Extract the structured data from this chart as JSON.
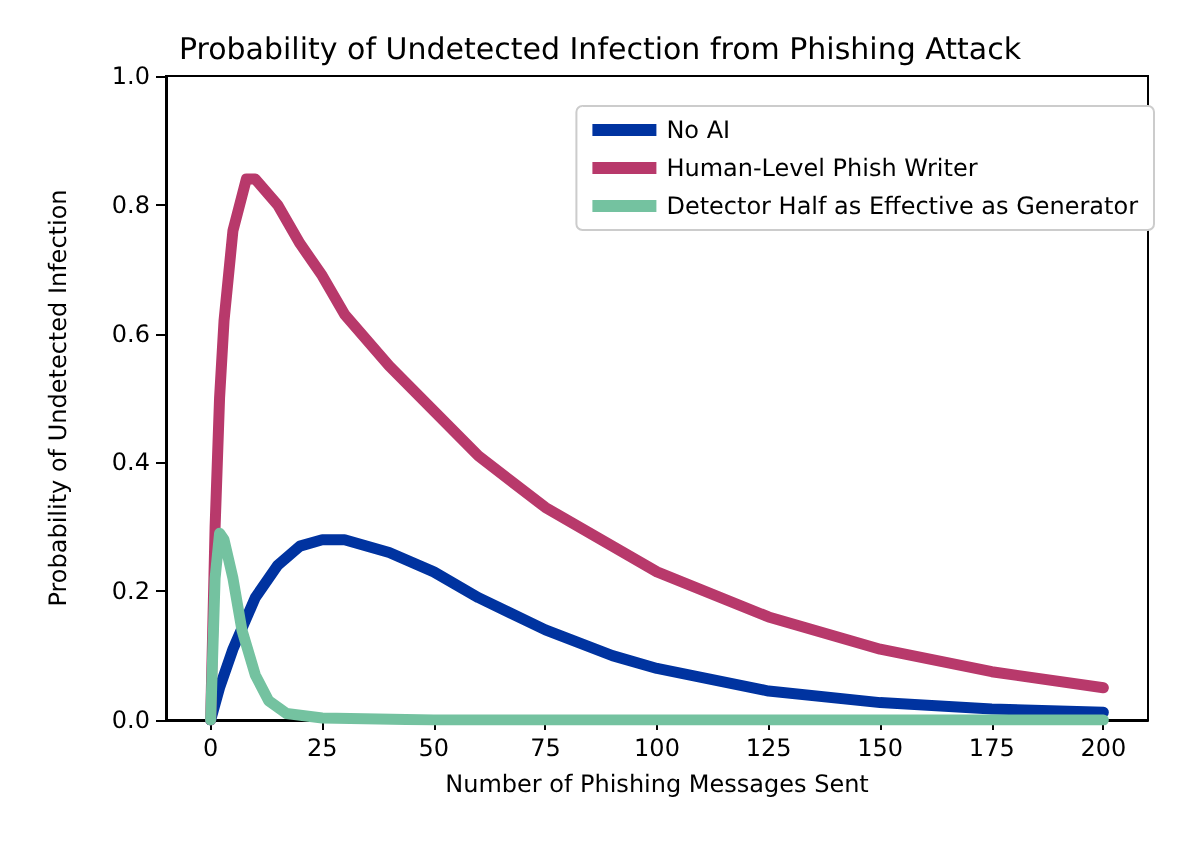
{
  "chart_data": {
    "type": "line",
    "title": "Probability of Undetected Infection from Phishing Attack",
    "xlabel": "Number of Phishing Messages Sent",
    "ylabel": "Probability of Undetected Infection",
    "xlim": [
      -10,
      210
    ],
    "xticks": [
      0,
      25,
      50,
      75,
      100,
      125,
      150,
      175,
      200
    ],
    "ylim": [
      0,
      1
    ],
    "yticks": [
      {
        "value": 0,
        "label": "0.0"
      },
      0.2,
      0.4,
      0.6,
      0.8,
      {
        "value": 1,
        "label": "1.0"
      }
    ],
    "grid": false,
    "legend": "top right",
    "marker": "none",
    "line_style": "solid",
    "series": [
      {
        "name": "No AI",
        "color": "#0033a0",
        "x": [
          0,
          2,
          5,
          10,
          15,
          20,
          25,
          30,
          40,
          50,
          60,
          75,
          90,
          100,
          125,
          150,
          175,
          200
        ],
        "values": [
          0,
          0.05,
          0.11,
          0.19,
          0.24,
          0.27,
          0.28,
          0.28,
          0.26,
          0.23,
          0.19,
          0.14,
          0.1,
          0.08,
          0.045,
          0.027,
          0.017,
          0.012
        ]
      },
      {
        "name": "Human-Level Phish Writer",
        "color": "#b8396b",
        "x": [
          0,
          1,
          2,
          3,
          5,
          8,
          10,
          15,
          20,
          25,
          30,
          40,
          50,
          60,
          75,
          100,
          125,
          150,
          175,
          200
        ],
        "values": [
          0,
          0.3,
          0.5,
          0.62,
          0.76,
          0.84,
          0.84,
          0.8,
          0.74,
          0.69,
          0.63,
          0.55,
          0.48,
          0.41,
          0.33,
          0.23,
          0.16,
          0.11,
          0.075,
          0.05
        ]
      },
      {
        "name": "Detector Half as Effective as Generator",
        "color": "#74c2a0",
        "x": [
          0,
          1,
          2,
          3,
          5,
          7,
          10,
          13,
          17,
          25,
          50,
          100,
          150,
          200
        ],
        "values": [
          0,
          0.22,
          0.29,
          0.28,
          0.22,
          0.14,
          0.07,
          0.03,
          0.01,
          0.003,
          0,
          0,
          0,
          0
        ]
      }
    ]
  }
}
